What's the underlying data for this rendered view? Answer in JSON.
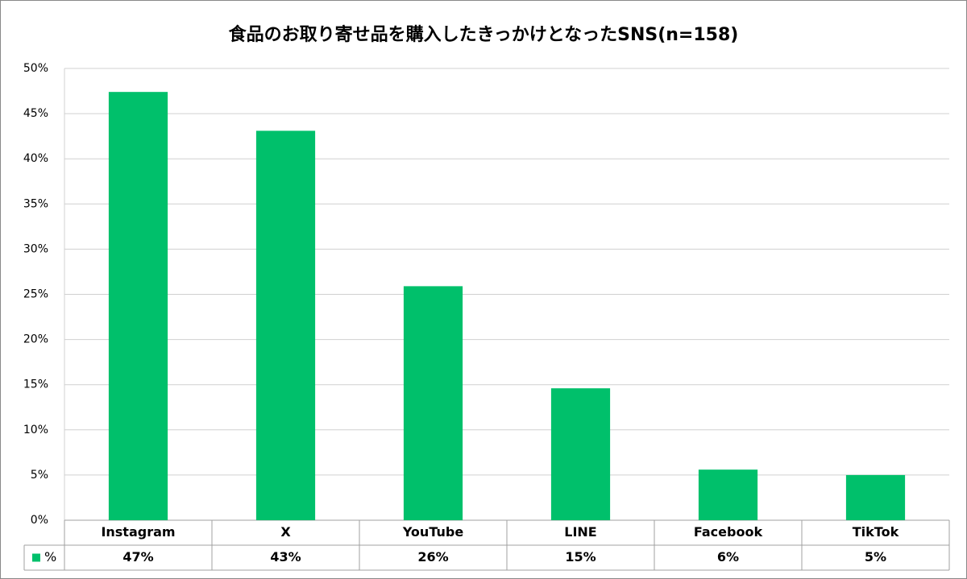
{
  "chart_data": {
    "type": "bar",
    "title": "食品のお取り寄せ品を購入したきっかけとなったSNS(n=158)",
    "categories": [
      "Instagram",
      "X",
      "YouTube",
      "LINE",
      "Facebook",
      "TikTok"
    ],
    "series": [
      {
        "name": "%",
        "color": "#00c06b",
        "values": [
          47.4,
          43.1,
          25.9,
          14.6,
          5.6,
          5.0
        ],
        "value_labels": [
          "47%",
          "43%",
          "26%",
          "15%",
          "6%",
          "5%"
        ]
      }
    ],
    "ylim": [
      0,
      50
    ],
    "yticks": [
      {
        "value": 0,
        "label": "0%"
      },
      {
        "value": 5,
        "label": "5%"
      },
      {
        "value": 10,
        "label": "10%"
      },
      {
        "value": 15,
        "label": "15%"
      },
      {
        "value": 20,
        "label": "20%"
      },
      {
        "value": 25,
        "label": "25%"
      },
      {
        "value": 30,
        "label": "30%"
      },
      {
        "value": 35,
        "label": "35%"
      },
      {
        "value": 40,
        "label": "40%"
      },
      {
        "value": 45,
        "label": "45%"
      },
      {
        "value": 50,
        "label": "50%"
      }
    ],
    "grid": true
  }
}
